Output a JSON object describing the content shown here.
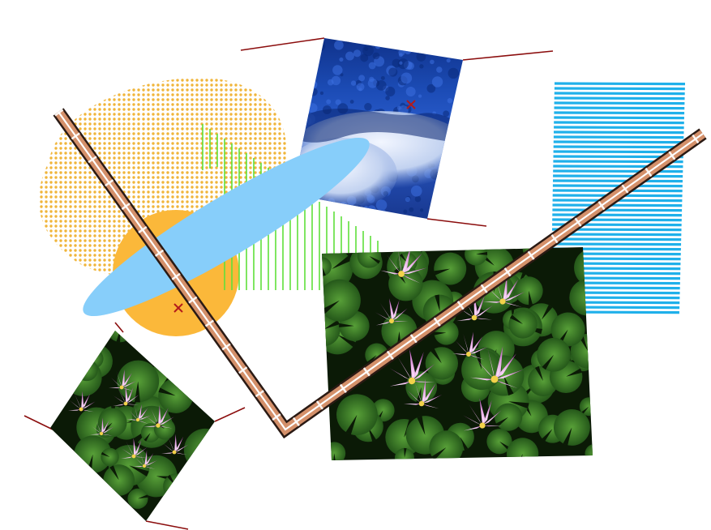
{
  "canvas": {
    "background": "#ffffff"
  },
  "colors": {
    "dot_pattern": "#f0b53a",
    "orange_circle": "#fbb83a",
    "light_blue_ellipse": "#87cefa",
    "green_lines": "#5fe03a",
    "cyan_stripes": "#1fb0ea",
    "ribbon_fill": "#d4906a",
    "ribbon_edge": "#2a1a14",
    "ribbon_dash": "#ffffff",
    "connector_lines": "#8b0d0d",
    "cross_marker": "#b31b1b",
    "forest_blue": "#123d9e",
    "forest_frost": "#c8d8f0",
    "lily_pad_green": "#2f6a1c",
    "lily_pad_dark": "#0b1a06",
    "lotus_pink": "#d886d6"
  },
  "elements": {
    "dot_blob": "dotted-orange-blob",
    "circle": "orange-circle",
    "ellipse": "light-blue-ellipse",
    "green_stripes": "vertical-green-lines",
    "cyan_stripes": "horizontal-cyan-stripes",
    "ribbon": "striped-zigzag-ribbon",
    "photo_forest": "snowy-blue-forest-photo",
    "photo_lotus_small": "water-lily-photo-small",
    "photo_lotus_large": "water-lily-photo-large",
    "markers": [
      "cross-marker-orange",
      "cross-marker-forest"
    ]
  }
}
